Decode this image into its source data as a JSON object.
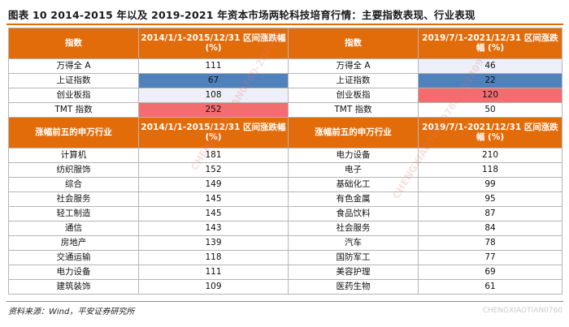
{
  "figure": {
    "title": "图表 10   2014-2015 年以及 2019-2021 年资本市场两轮科技培育行情：主要指数表现、行业表现"
  },
  "index_header": {
    "col1": "指数",
    "col2": "2014/1/1-2015/12/31 区间涨跌幅 (%)",
    "col3": "指数",
    "col4": "2019/7/1-2021/12/31 区间涨跌幅 (%)"
  },
  "index_rows": [
    {
      "name1": "万得全 A",
      "v1": "111",
      "name2": "万得全 A",
      "v2": "46",
      "hl1": "",
      "hl2": "lav"
    },
    {
      "name1": "上证指数",
      "v1": "67",
      "name2": "上证指数",
      "v2": "22",
      "hl1": "blue",
      "hl2": "blue"
    },
    {
      "name1": "创业板指",
      "v1": "108",
      "name2": "创业板指",
      "v2": "120",
      "hl1": "lav",
      "hl2": "red"
    },
    {
      "name1": "TMT 指数",
      "v1": "252",
      "name2": "TMT 指数",
      "v2": "50",
      "hl1": "red",
      "hl2": ""
    }
  ],
  "industry_header": {
    "col1": "涨幅前五的申万行业",
    "col2": "2014/1/1-2015/12/31 区间涨跌幅 (%)",
    "col3": "涨幅前五的申万行业",
    "col4": "2019/7/1-2021/12/31 区间涨跌幅 (%)"
  },
  "industry_rows": [
    {
      "name1": "计算机",
      "v1": "181",
      "name2": "电力设备",
      "v2": "210"
    },
    {
      "name1": "纺织服饰",
      "v1": "152",
      "name2": "电子",
      "v2": "118"
    },
    {
      "name1": "综合",
      "v1": "149",
      "name2": "基础化工",
      "v2": "99"
    },
    {
      "name1": "社会服务",
      "v1": "145",
      "name2": "有色金属",
      "v2": "95"
    },
    {
      "name1": "轻工制造",
      "v1": "145",
      "name2": "食品饮料",
      "v2": "87"
    },
    {
      "name1": "通信",
      "v1": "143",
      "name2": "社会服务",
      "v2": "84"
    },
    {
      "name1": "房地产",
      "v1": "139",
      "name2": "汽车",
      "v2": "78"
    },
    {
      "name1": "交通运输",
      "v1": "118",
      "name2": "国防军工",
      "v2": "77"
    },
    {
      "name1": "电力设备",
      "v1": "111",
      "name2": "美容护理",
      "v2": "69"
    },
    {
      "name1": "建筑装饰",
      "v1": "109",
      "name2": "医药生物",
      "v2": "61"
    }
  ],
  "source": "资料来源：Wind，平安证券研究所",
  "watermarks": [
    "CHENGXIAOTIAN0760-202409",
    "CHENGXIAOTIAN0760-202409",
    "CHENGXIAOTIAN0760"
  ],
  "colors": {
    "header_orange": "#e36c0a",
    "highlight_blue": "#4f81bd",
    "highlight_red": "#f36c6f",
    "highlight_lavender": "#eef0f9"
  }
}
